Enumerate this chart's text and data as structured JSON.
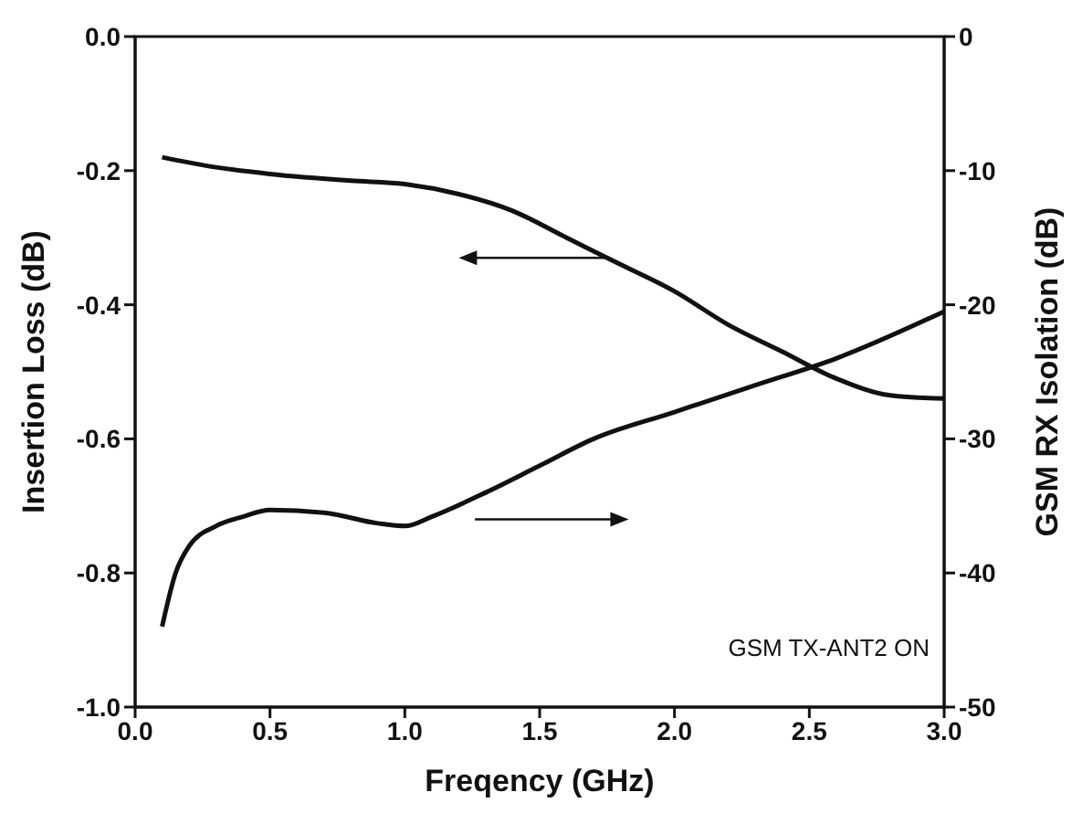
{
  "chart_data": {
    "type": "line",
    "xlabel": "Freqency (GHz)",
    "ylabel": "Insertion Loss (dB)",
    "y2label": "GSM RX Isolation (dB)",
    "xlim": [
      0,
      3
    ],
    "xticks": [
      {
        "value": 0,
        "label": "0.0"
      },
      {
        "value": 0.5,
        "label": "0.5"
      },
      {
        "value": 1,
        "label": "1.0"
      },
      {
        "value": 1.5,
        "label": "1.5"
      },
      {
        "value": 2,
        "label": "2.0"
      },
      {
        "value": 2.5,
        "label": "2.5"
      },
      {
        "value": 3,
        "label": "3.0"
      }
    ],
    "ylim": [
      -1,
      0
    ],
    "yticks": [
      {
        "value": -1,
        "label": "-1.0"
      },
      {
        "value": -0.8,
        "label": "-0.8"
      },
      {
        "value": -0.6,
        "label": "-0.6"
      },
      {
        "value": -0.4,
        "label": "-0.4"
      },
      {
        "value": -0.2,
        "label": "-0.2"
      },
      {
        "value": 0,
        "label": "0.0"
      }
    ],
    "y2lim": [
      -50,
      0
    ],
    "y2ticks": [
      -50,
      -40,
      -30,
      -20,
      -10,
      0
    ],
    "marker": "none",
    "line_style": "solid",
    "annotations": [
      "GSM TX-ANT2 ON"
    ],
    "series": [
      {
        "color": "#111111",
        "x": [
          0.1,
          0.3,
          0.5,
          0.8,
          1.0,
          1.2,
          1.4,
          1.6,
          1.8,
          2.0,
          2.2,
          2.4,
          2.6,
          2.8,
          3.0
        ],
        "values": [
          -0.18,
          -0.195,
          -0.205,
          -0.215,
          -0.22,
          -0.235,
          -0.26,
          -0.3,
          -0.34,
          -0.38,
          -0.43,
          -0.47,
          -0.51,
          -0.535,
          -0.54
        ]
      },
      {
        "color": "#111111",
        "axis": "y2",
        "x": [
          0.1,
          0.15,
          0.2,
          0.3,
          0.4,
          0.5,
          0.7,
          0.9,
          1.0,
          1.1,
          1.3,
          1.5,
          1.7,
          2.0,
          2.3,
          2.6,
          3.0
        ],
        "values": [
          -44,
          -40,
          -38,
          -36.5,
          -35.8,
          -35.3,
          -35.5,
          -36.3,
          -36.5,
          -35.8,
          -34,
          -32,
          -30,
          -28,
          -26,
          -24,
          -20.5
        ]
      }
    ]
  }
}
